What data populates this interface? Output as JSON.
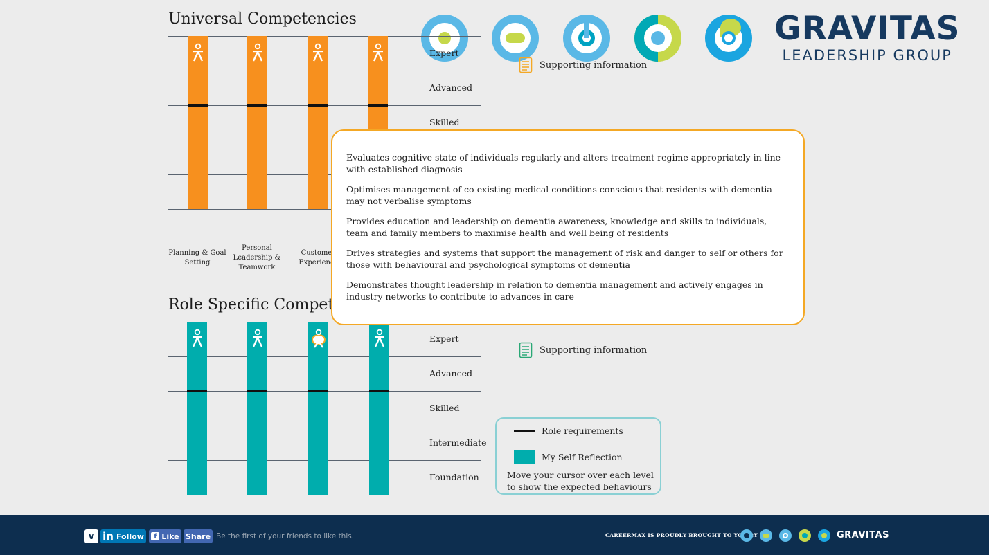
{
  "universal": {
    "title": "Universal Competencies",
    "levels": [
      "Expert",
      "Advanced",
      "Skilled"
    ],
    "categories": [
      [
        "Planning & Goal",
        "Setting"
      ],
      [
        "Personal",
        "Leadership &",
        "Teamwork"
      ],
      [
        "Custome",
        "Experienc"
      ]
    ],
    "supporting_label": "Supporting information",
    "bar_color": "#f7901e"
  },
  "role_specific": {
    "title": "Role Specific Compete",
    "levels": [
      "Expert",
      "Advanced",
      "Skilled",
      "Intermediate",
      "Foundation"
    ],
    "supporting_label": "Supporting information",
    "bar_color": "#00adad"
  },
  "popup": {
    "items": [
      "Evaluates cognitive state of individuals regularly and alters treatment regime appropriately in line with established diagnosis",
      "Optimises management of co-existing medical conditions conscious that residents with dementia may not verbalise symptoms",
      "Provides education and leadership on dementia awareness, knowledge and skills to individuals, team and family members to maximise health and well being of residents",
      "Drives strategies and systems that support the management of risk and danger to self or others for those with behavioural and psychological symptoms of dementia",
      "Demonstrates thought leadership in relation to dementia management and actively engages in industry networks to contribute to advances in care"
    ],
    "border_color": "#f4a825"
  },
  "legend": {
    "role_requirements": "Role requirements",
    "self_reflection": "My Self Reflection",
    "hint": "Move your cursor over each level to show the expected behaviours"
  },
  "brand": {
    "name": "GRAVITAS",
    "subtitle": "LEADERSHIP GROUP",
    "color": "#16395f"
  },
  "footer": {
    "follow": "Follow",
    "like": "Like",
    "share": "Share",
    "fb_text": "Be the first of your friends to like this.",
    "brought_by": "CAREERMAX IS PROUDLY BROUGHT TO YOU BY",
    "gravitas": "GRAVITAS",
    "bg": "#0d2e4f"
  }
}
